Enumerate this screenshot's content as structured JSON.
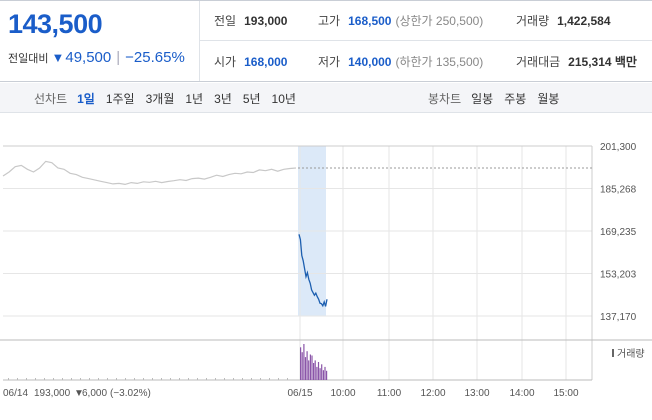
{
  "quote": {
    "price": "143,500",
    "change_label": "전일대비",
    "change_arrow": "▼",
    "change_value": "49,500",
    "change_sep": "|",
    "change_pct": "−25.65%",
    "prev_close_label": "전일",
    "prev_close": "193,000",
    "high_label": "고가",
    "high": "168,500",
    "upper_limit": "(상한가 250,500)",
    "volume_label": "거래량",
    "volume": "1,422,584",
    "open_label": "시가",
    "open": "168,000",
    "low_label": "저가",
    "low": "140,000",
    "lower_limit": "(하한가 135,500)",
    "amount_label": "거래대금",
    "amount": "215,314 백만"
  },
  "toolbar": {
    "line_label": "선차트",
    "periods": [
      "1일",
      "1주일",
      "3개월",
      "1년",
      "3년",
      "5년",
      "10년"
    ],
    "active_period": "1일",
    "candle_label": "봉차트",
    "candle_periods": [
      "일봉",
      "주봉",
      "월봉"
    ]
  },
  "colors": {
    "down_blue": "#1a5dc9",
    "price_line": "#1d5fb0",
    "prev_line": "#c8c8c8",
    "highlight": "#dce9f8",
    "volume": "#8a55a8"
  },
  "chart_data": {
    "type": "line",
    "title": "",
    "xlabel": "",
    "ylabel": "",
    "ylim": [
      137170,
      201300
    ],
    "yticks": [
      "201,300",
      "185,268",
      "169,235",
      "153,203",
      "137,170"
    ],
    "xticks": [
      "06/15",
      "10:00",
      "11:00",
      "12:00",
      "13:00",
      "14:00",
      "15:00"
    ],
    "grid": true,
    "legend": "none",
    "prev_close_ref": 193000,
    "series": [
      {
        "name": "",
        "session": "06/14",
        "values": [
          190000,
          191500,
          193500,
          194000,
          192500,
          191500,
          193000,
          195500,
          195000,
          193000,
          192500,
          191000,
          190500,
          189500,
          189000,
          188500,
          188000,
          187500,
          187000,
          187200,
          186800,
          187500,
          187200,
          187800,
          187600,
          188000,
          187500,
          187900,
          188200,
          188600,
          188300,
          189000,
          189200,
          188800,
          189500,
          190300,
          189800,
          190500,
          191000,
          190800,
          191500,
          191300,
          192300,
          192000,
          192500,
          191800,
          192500,
          192800,
          193000
        ]
      },
      {
        "name": "",
        "session": "06/15",
        "values": [
          168000,
          166000,
          160000,
          158000,
          155000,
          152000,
          153500,
          151000,
          149500,
          147000,
          146000,
          145000,
          145800,
          144500,
          143500,
          142000,
          141800,
          141000,
          142500,
          140800,
          143500
        ]
      }
    ],
    "volume_label": "거래량",
    "volume": [
      100,
      85,
      110,
      70,
      88,
      60,
      78,
      75,
      52,
      60,
      40,
      55,
      36,
      48,
      30,
      40,
      28
    ],
    "footer": {
      "date": "06/14",
      "close": "193,000",
      "arrow": "▼",
      "change": "6,000",
      "pct": "(−3.02%)"
    }
  }
}
